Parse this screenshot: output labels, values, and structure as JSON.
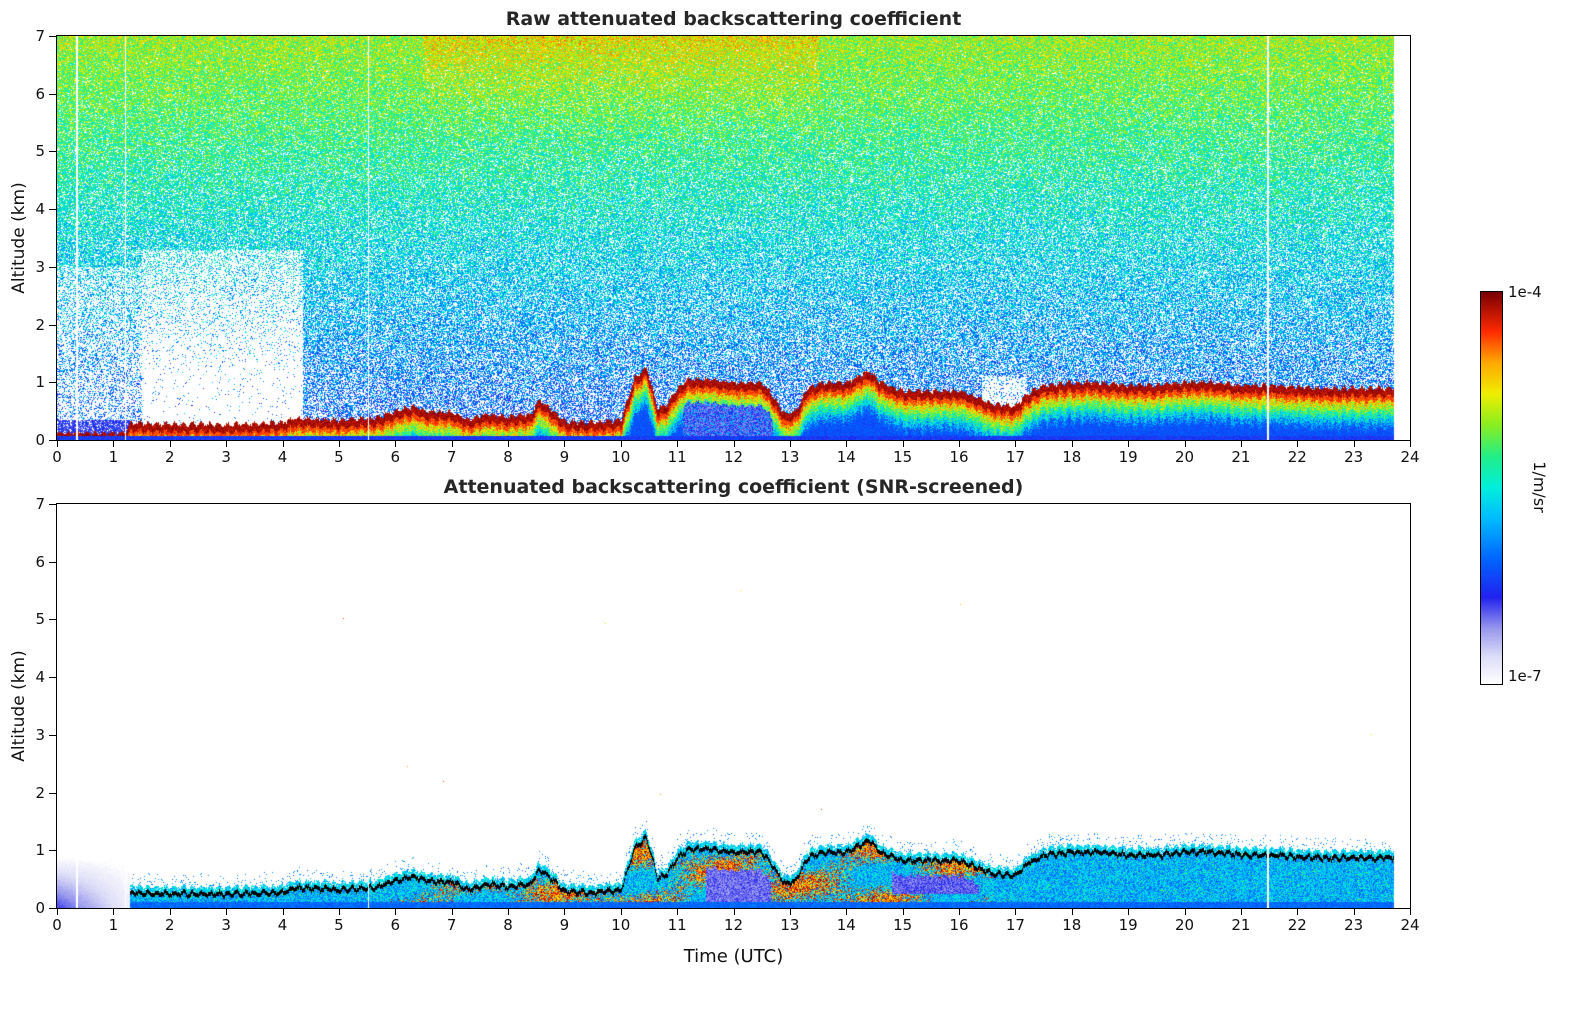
{
  "chart_data": {
    "type": "heatmap",
    "panels": [
      {
        "title": "Raw attenuated backscattering coefficient",
        "ylabel": "Altitude (km)"
      },
      {
        "title": "Attenuated backscattering coefficient (SNR-screened)",
        "ylabel": "Altitude (km)",
        "xlabel": "Time (UTC)"
      }
    ],
    "x_range": [
      0,
      24
    ],
    "y_range": [
      0,
      7
    ],
    "x_ticks": [
      0,
      1,
      2,
      3,
      4,
      5,
      6,
      7,
      8,
      9,
      10,
      11,
      12,
      13,
      14,
      15,
      16,
      17,
      18,
      19,
      20,
      21,
      22,
      23,
      24
    ],
    "y_ticks": [
      0,
      1,
      2,
      3,
      4,
      5,
      6,
      7
    ],
    "colorbar": {
      "max_label": "1e-4",
      "min_label": "1e-7",
      "unit": "1/m/sr"
    },
    "colormap": [
      [
        0.0,
        "#ffffff"
      ],
      [
        0.07,
        "#dcdcf8"
      ],
      [
        0.14,
        "#9898ee"
      ],
      [
        0.22,
        "#2222ee"
      ],
      [
        0.32,
        "#0066ff"
      ],
      [
        0.42,
        "#00bbff"
      ],
      [
        0.5,
        "#00eedd"
      ],
      [
        0.58,
        "#22ee88"
      ],
      [
        0.66,
        "#88ee22"
      ],
      [
        0.74,
        "#eeee00"
      ],
      [
        0.82,
        "#ffaa00"
      ],
      [
        0.9,
        "#ff2a00"
      ],
      [
        1.0,
        "#7a0000"
      ]
    ],
    "layer_top_km": {
      "hours": [
        0,
        1.2,
        1.3,
        2.0,
        3.0,
        4.0,
        4.2,
        5.0,
        5.6,
        6.0,
        6.3,
        6.6,
        7.0,
        7.3,
        7.6,
        8.0,
        8.4,
        8.55,
        8.75,
        9.0,
        9.5,
        10.0,
        10.25,
        10.45,
        10.65,
        10.8,
        11.0,
        11.2,
        11.6,
        12.0,
        12.5,
        12.7,
        12.9,
        13.1,
        13.3,
        13.6,
        14.0,
        14.2,
        14.4,
        14.6,
        15.0,
        15.5,
        16.0,
        16.4,
        16.6,
        17.0,
        17.2,
        17.5,
        18.0,
        18.5,
        19.0,
        19.5,
        20.0,
        20.5,
        21.0,
        21.5,
        22.0,
        22.5,
        23.0,
        23.7
      ],
      "km": [
        0.12,
        0.12,
        0.3,
        0.28,
        0.27,
        0.3,
        0.38,
        0.35,
        0.38,
        0.5,
        0.58,
        0.5,
        0.48,
        0.35,
        0.45,
        0.4,
        0.45,
        0.7,
        0.55,
        0.32,
        0.3,
        0.35,
        1.1,
        1.25,
        0.55,
        0.6,
        0.9,
        1.05,
        1.05,
        1.0,
        1.0,
        0.75,
        0.45,
        0.5,
        0.9,
        1.0,
        1.0,
        1.1,
        1.2,
        1.0,
        0.85,
        0.85,
        0.85,
        0.7,
        0.62,
        0.6,
        0.8,
        0.95,
        1.0,
        1.0,
        0.95,
        0.95,
        1.0,
        1.0,
        0.95,
        0.95,
        0.92,
        0.9,
        0.9,
        0.9
      ]
    },
    "data_end_hour": 23.7,
    "gap_hours": [
      0.35,
      1.21,
      5.52,
      21.47
    ]
  }
}
